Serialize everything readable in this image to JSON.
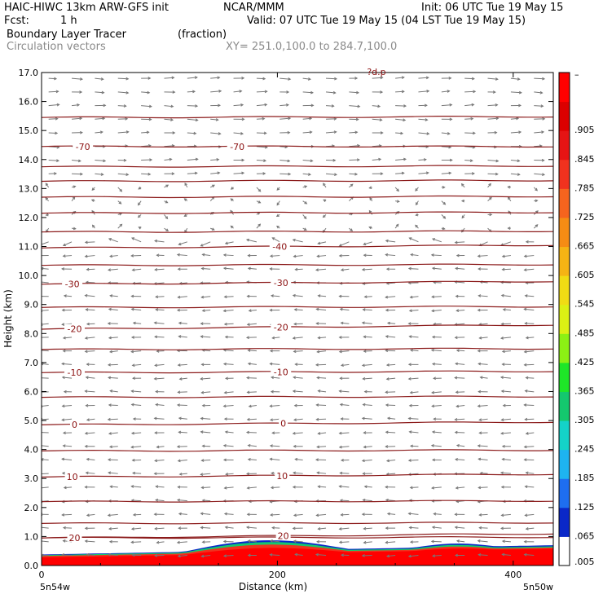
{
  "header": {
    "model": "HAIC-HIWC 13km ARW-GFS init",
    "org": "NCAR/MMM",
    "init": "Init: 06 UTC Tue 19 May 15",
    "fcst_label": "Fcst:",
    "fcst_value": "1 h",
    "valid": "Valid: 07 UTC Tue 19 May 15 (04 LST Tue 19 May 15)",
    "field": "Boundary Layer Tracer",
    "field_units": "(fraction)",
    "vectors": "Circulation vectors",
    "xy": "XY= 251.0,100.0 to 284.7,100.0"
  },
  "colors": {
    "contour": "#8b1a1a",
    "vector": "#777777",
    "terrain": "#ffffff"
  },
  "chart_data": {
    "type": "heatmap",
    "xlabel": "Distance (km)",
    "ylabel": "Height (km)",
    "xlim": [
      0,
      434
    ],
    "ylim": [
      0,
      17
    ],
    "x_ticks": [
      0,
      200,
      400
    ],
    "y_ticks": [
      "0.0",
      "1.0",
      "2.0",
      "3.0",
      "4.0",
      "5.0",
      "6.0",
      "7.0",
      "8.0",
      "9.0",
      "10.0",
      "11.0",
      "12.0",
      "13.0",
      "14.0",
      "15.0",
      "16.0",
      "17.0"
    ],
    "x_end_labels": [
      "5n54w",
      "5n50w"
    ],
    "top_partial_label": "?d.p",
    "colorbar": {
      "labels": [
        ".005",
        ".065",
        ".125",
        ".185",
        ".245",
        ".305",
        ".365",
        ".425",
        ".485",
        ".545",
        ".605",
        ".665",
        ".725",
        ".785",
        ".845",
        ".905",
        "–"
      ],
      "colors": [
        "#ffffff",
        "#0a28c8",
        "#1e6ef0",
        "#1eb4f0",
        "#14d2c8",
        "#14c86e",
        "#1ee628",
        "#8cf014",
        "#dcf014",
        "#f0dc14",
        "#f5b414",
        "#f58c14",
        "#f5641e",
        "#f0321e",
        "#e61414",
        "#dc0000",
        "#ff0000"
      ]
    },
    "isotherms": [
      {
        "label": "20",
        "y0": 0.95,
        "y1": 1.1,
        "labels_at": [
          28,
          205
        ]
      },
      {
        "label": "10",
        "y0": 3.05,
        "y1": 3.15,
        "labels_at": [
          26,
          204
        ]
      },
      {
        "label": "0",
        "y0": 4.85,
        "y1": 4.95,
        "labels_at": [
          28,
          205
        ]
      },
      {
        "label": "-10",
        "y0": 6.65,
        "y1": 6.7,
        "labels_at": [
          28,
          203
        ]
      },
      {
        "label": "-20",
        "y0": 8.15,
        "y1": 8.3,
        "labels_at": [
          28,
          203
        ]
      },
      {
        "label": "-30",
        "y0": 9.7,
        "y1": 9.8,
        "labels_at": [
          26,
          203
        ]
      },
      {
        "label": "-40",
        "y0": 10.95,
        "y1": 11.05,
        "labels_at": [
          null,
          202
        ]
      },
      {
        "label": "-70",
        "y0": 14.45,
        "y1": 14.45,
        "labels_at": [
          35,
          166
        ]
      }
    ],
    "extra_levels": [
      0.95,
      1.45,
      2.2,
      3.95,
      5.8,
      7.45,
      8.9,
      10.35,
      11.5,
      12.15,
      12.7,
      13.25,
      13.75,
      15.45
    ],
    "tracer": [
      {
        "value": 0.965,
        "x": [
          0,
          434
        ],
        "top": [
          0.28,
          0.58
        ]
      },
      {
        "value": 0.84,
        "x": [
          0,
          434
        ],
        "top": [
          0.33,
          0.62
        ]
      },
      {
        "value": 0.35,
        "x": [
          0,
          434
        ],
        "top": [
          0.36,
          0.66
        ]
      },
      {
        "value": 0.065,
        "x": [
          0,
          434
        ],
        "top": [
          0.38,
          0.7
        ]
      }
    ]
  }
}
